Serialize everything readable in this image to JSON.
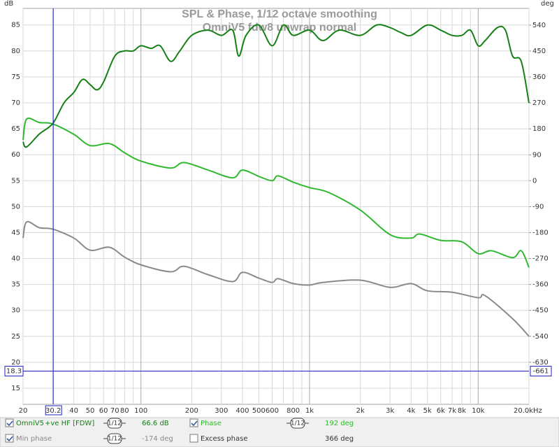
{
  "chart_data": {
    "type": "line",
    "title": "SPL & Phase, 1/12 octave smoothing",
    "subtitle": "OmniV5 fdw8 unwrap normal",
    "y_label": "dB",
    "y2_label": "deg",
    "x_label": "Hz",
    "log_x": true,
    "grid": true,
    "xlim": [
      20,
      20000
    ],
    "xticks": [
      20,
      40,
      50,
      60,
      70,
      80,
      100,
      200,
      300,
      400,
      500,
      600,
      800,
      {
        "value": 1000,
        "label": "1k"
      },
      {
        "value": 2000,
        "label": "2k"
      },
      {
        "value": 3000,
        "label": "3k"
      },
      {
        "value": 4000,
        "label": "4k"
      },
      {
        "value": 5000,
        "label": "5k"
      },
      {
        "value": 6000,
        "label": "6k"
      },
      {
        "value": 7000,
        "label": "7k"
      },
      {
        "value": 8000,
        "label": "8k"
      },
      {
        "value": 10000,
        "label": "10k"
      },
      {
        "value": 20000,
        "label": "20.0k"
      }
    ],
    "xgrid_minor": [
      30,
      90,
      700,
      900,
      9000
    ],
    "ylim": [
      11.9,
      88.2
    ],
    "yticks": [
      15,
      20,
      25,
      30,
      35,
      40,
      45,
      50,
      55,
      60,
      65,
      70,
      75,
      80,
      85
    ],
    "y2lim": [
      -776,
      598
    ],
    "y2ticks": [
      -630,
      -540,
      -450,
      -360,
      -270,
      -180,
      -90,
      0,
      90,
      180,
      270,
      360,
      450,
      540
    ],
    "cursor_x": 30.2,
    "cursor_y": 18.3,
    "cursor_y2": -661,
    "series": [
      {
        "name": "OmniV5",
        "tag": "+ve HF [FDW]",
        "smoothing": "1/12",
        "readout": "66.6 dB",
        "checked": true,
        "color": "#168016",
        "x": [
          20,
          21,
          25,
          30,
          35,
          40,
          45,
          50,
          55,
          60,
          70,
          80,
          90,
          100,
          115,
          130,
          150,
          170,
          200,
          250,
          300,
          350,
          380,
          420,
          500,
          600,
          700,
          800,
          1000,
          1200,
          1500,
          2000,
          2500,
          3000,
          3500,
          4000,
          5000,
          6000,
          7000,
          8000,
          9000,
          10000,
          11000,
          13000,
          14500,
          16000,
          18000,
          20000
        ],
        "values": [
          62.5,
          61.5,
          64,
          66,
          70,
          72,
          74.5,
          73.5,
          72.5,
          74,
          79,
          80,
          80,
          81,
          80.5,
          81,
          78,
          80,
          83,
          84,
          83,
          84,
          79,
          83,
          85,
          81,
          85,
          83,
          84,
          82,
          84,
          83,
          85,
          84.5,
          83.5,
          83,
          85,
          84,
          83,
          83,
          84,
          81,
          82,
          84.5,
          84,
          79,
          78,
          70
        ]
      },
      {
        "name": "Phase",
        "smoothing": "1/12",
        "readout": "192 deg",
        "checked": true,
        "color": "#30b830",
        "axis": "y2",
        "x": [
          20,
          21,
          25,
          30,
          40,
          50,
          65,
          80,
          100,
          150,
          180,
          250,
          350,
          400,
          500,
          600,
          650,
          800,
          1000,
          1300,
          2000,
          3000,
          4000,
          4500,
          6000,
          8000,
          10000,
          12000,
          16000,
          18000,
          20000
        ],
        "values": [
          141,
          214,
          202,
          197,
          161,
          122,
          129,
          97,
          68,
          44,
          63,
          37,
          10,
          37,
          15,
          0,
          17,
          -5,
          -24,
          -41,
          -102,
          -187,
          -199,
          -185,
          -207,
          -212,
          -253,
          -243,
          -267,
          -243,
          -301
        ]
      },
      {
        "name": "Min phase",
        "smoothing": "1/12",
        "readout": "-174 deg",
        "checked": true,
        "color": "#8a8a8a",
        "axis": "y2",
        "x": [
          20,
          21,
          25,
          30,
          40,
          50,
          65,
          80,
          100,
          150,
          180,
          250,
          350,
          400,
          500,
          600,
          650,
          800,
          1000,
          1200,
          2000,
          3000,
          4000,
          5000,
          7000,
          10000,
          11000,
          16000,
          20000
        ],
        "values": [
          -199,
          -143,
          -163,
          -168,
          -199,
          -241,
          -231,
          -265,
          -292,
          -316,
          -297,
          -326,
          -350,
          -318,
          -338,
          -353,
          -340,
          -357,
          -362,
          -353,
          -345,
          -370,
          -357,
          -382,
          -387,
          -406,
          -399,
          -479,
          -540
        ]
      }
    ],
    "extra_traces": [
      {
        "name": "Excess phase",
        "checked": false,
        "readout": "366 deg"
      }
    ]
  }
}
